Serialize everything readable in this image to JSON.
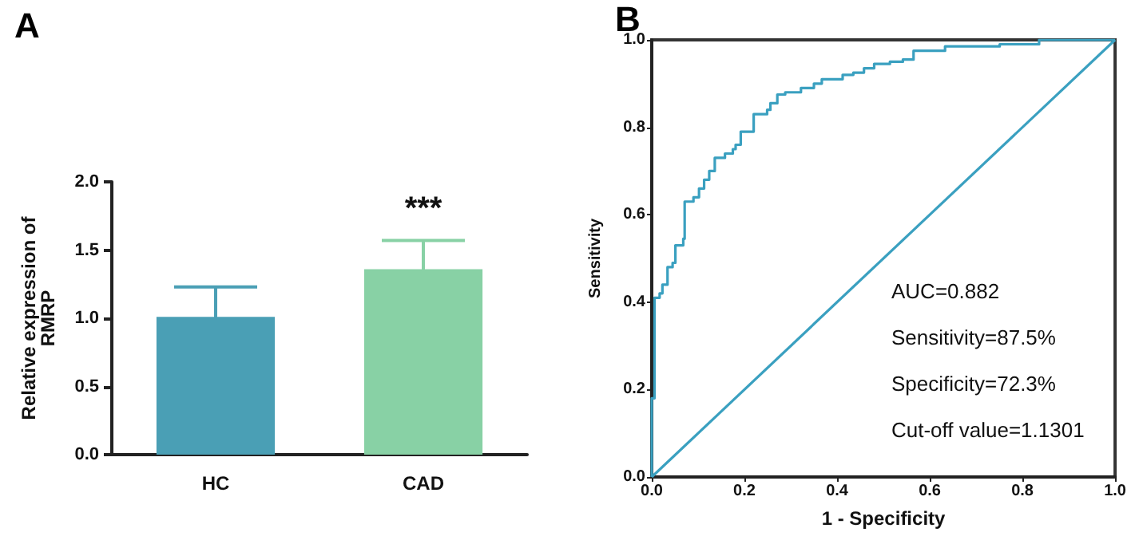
{
  "chart_data": [
    {
      "type": "bar",
      "title": "A",
      "ylabel": "Relative expression of\nRMRP",
      "categories": [
        "HC",
        "CAD"
      ],
      "values": [
        1.01,
        1.36
      ],
      "colors": [
        "#4a9fb5",
        "#88d1a5"
      ],
      "errors": [
        0.22,
        0.21
      ],
      "ylim": [
        0,
        2
      ],
      "yticks": [
        {
          "value": 0,
          "label": "0.0"
        },
        {
          "value": 0.5,
          "label": "0.5"
        },
        {
          "value": 1,
          "label": "1.0"
        },
        {
          "value": 1.5,
          "label": "1.5"
        },
        {
          "value": 2,
          "label": "2.0"
        }
      ],
      "annotations": [
        "***"
      ]
    },
    {
      "type": "step",
      "title": "B",
      "xlabel": "1 - Specificity",
      "ylabel": "Sensitivity",
      "x": [
        0,
        0,
        0.006,
        0.017,
        0.023,
        0.034,
        0.045,
        0.051,
        0.068,
        0.071,
        0.09,
        0.102,
        0.113,
        0.124,
        0.136,
        0.158,
        0.175,
        0.181,
        0.192,
        0.22,
        0.249,
        0.256,
        0.271,
        0.288,
        0.322,
        0.35,
        0.367,
        0.412,
        0.435,
        0.458,
        0.48,
        0.514,
        0.542,
        0.565,
        0.633,
        0.751,
        0.836,
        1.0
      ],
      "series": [
        {
          "color": "#3aa0c0",
          "values": [
            0,
            0.18,
            0.41,
            0.42,
            0.44,
            0.48,
            0.49,
            0.53,
            0.545,
            0.63,
            0.64,
            0.66,
            0.68,
            0.7,
            0.73,
            0.74,
            0.75,
            0.76,
            0.79,
            0.83,
            0.84,
            0.855,
            0.875,
            0.88,
            0.89,
            0.9,
            0.91,
            0.92,
            0.925,
            0.935,
            0.945,
            0.95,
            0.955,
            0.975,
            0.985,
            0.99,
            1.0,
            1.0
          ]
        },
        {
          "type": "line",
          "color": "#3aa0c0",
          "x": [
            0,
            1
          ],
          "values": [
            0,
            1
          ]
        }
      ],
      "xlim": [
        0,
        1
      ],
      "xticks": [
        {
          "value": 0,
          "label": "0.0"
        },
        {
          "value": 0.2,
          "label": "0.2"
        },
        {
          "value": 0.4,
          "label": "0.4"
        },
        {
          "value": 0.6,
          "label": "0.6"
        },
        {
          "value": 0.8,
          "label": "0.8"
        },
        {
          "value": 1,
          "label": "1.0"
        }
      ],
      "ylim": [
        0,
        1
      ],
      "yticks": [
        {
          "value": 0,
          "label": "0.0"
        },
        {
          "value": 0.2,
          "label": "0.2"
        },
        {
          "value": 0.4,
          "label": "0.4"
        },
        {
          "value": 0.6,
          "label": "0.6"
        },
        {
          "value": 0.8,
          "label": "0.8"
        },
        {
          "value": 1,
          "label": "1.0"
        }
      ],
      "annotations": [
        "AUC=0.882",
        "Sensitivity=87.5%",
        "Specificity=72.3%",
        "Cut-off value=1.1301"
      ]
    }
  ]
}
